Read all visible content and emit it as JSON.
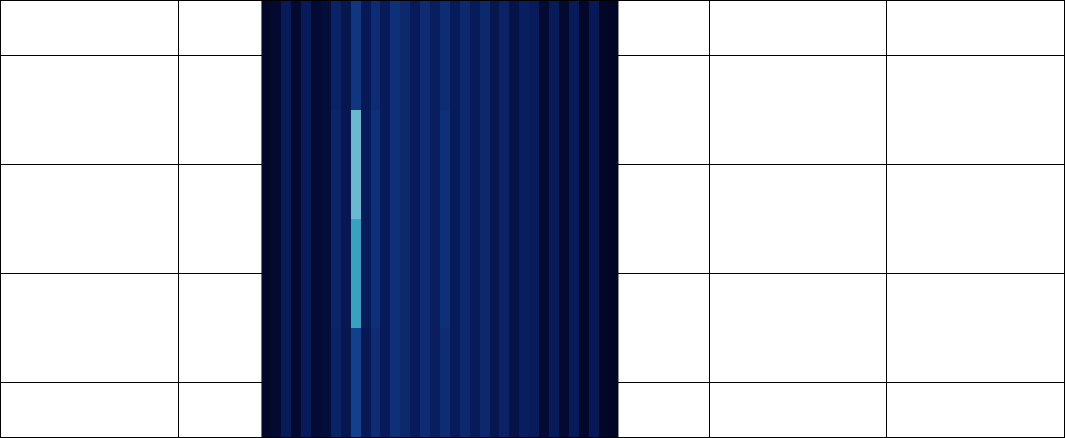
{
  "chart_data": {
    "type": "heatmap",
    "x": [
      1.47,
      1.526,
      1.582,
      1.638,
      1.694,
      1.75,
      1.806,
      1.862,
      1.918,
      1.974,
      2.03,
      2.086,
      2.142,
      2.198,
      2.254,
      2.31,
      2.366,
      2.422,
      2.478,
      2.534,
      2.59,
      2.646,
      2.702,
      2.758,
      2.814,
      2.87,
      2.926,
      2.982,
      3.038,
      3.094,
      3.15,
      3.206,
      3.262,
      3.318,
      3.374,
      3.43,
      3.486
    ],
    "y": [
      0,
      1,
      2,
      3,
      4
    ],
    "cells": [
      [
        0.08,
        0.1,
        0.3,
        0.1,
        0.3,
        0.12,
        0.15,
        0.35,
        0.25,
        0.5,
        0.28,
        0.4,
        0.3,
        0.42,
        0.38,
        0.3,
        0.4,
        0.32,
        0.4,
        0.3,
        0.38,
        0.3,
        0.38,
        0.25,
        0.35,
        0.22,
        0.32,
        0.3,
        0.12,
        0.3,
        0.1,
        0.3,
        0.08,
        0.28,
        0.06,
        0.05
      ],
      [
        0.08,
        0.1,
        0.3,
        0.1,
        0.3,
        0.12,
        0.15,
        0.36,
        0.26,
        0.8,
        0.3,
        0.42,
        0.3,
        0.42,
        0.38,
        0.3,
        0.4,
        0.32,
        0.42,
        0.3,
        0.38,
        0.3,
        0.38,
        0.25,
        0.35,
        0.22,
        0.32,
        0.3,
        0.12,
        0.3,
        0.1,
        0.3,
        0.08,
        0.28,
        0.06,
        0.05
      ],
      [
        0.08,
        0.1,
        0.3,
        0.1,
        0.3,
        0.12,
        0.15,
        0.36,
        0.26,
        0.85,
        0.3,
        0.42,
        0.3,
        0.42,
        0.38,
        0.3,
        0.4,
        0.32,
        0.42,
        0.3,
        0.38,
        0.3,
        0.38,
        0.25,
        0.35,
        0.22,
        0.32,
        0.3,
        0.12,
        0.3,
        0.1,
        0.3,
        0.08,
        0.28,
        0.06,
        0.05
      ],
      [
        0.08,
        0.1,
        0.3,
        0.1,
        0.3,
        0.12,
        0.15,
        0.35,
        0.25,
        0.45,
        0.28,
        0.4,
        0.3,
        0.42,
        0.38,
        0.3,
        0.4,
        0.32,
        0.4,
        0.3,
        0.38,
        0.3,
        0.38,
        0.25,
        0.35,
        0.22,
        0.32,
        0.3,
        0.12,
        0.3,
        0.1,
        0.3,
        0.08,
        0.28,
        0.06,
        0.05
      ]
    ],
    "zlim": [
      0,
      1
    ],
    "xlim": [
      0,
      6
    ],
    "xticks": [
      1,
      2,
      3,
      4,
      5
    ],
    "ylim": [
      0,
      4
    ],
    "yticks": [
      0.5,
      1.5,
      2.5,
      3.5
    ],
    "grid": true,
    "tick_labels": false
  }
}
